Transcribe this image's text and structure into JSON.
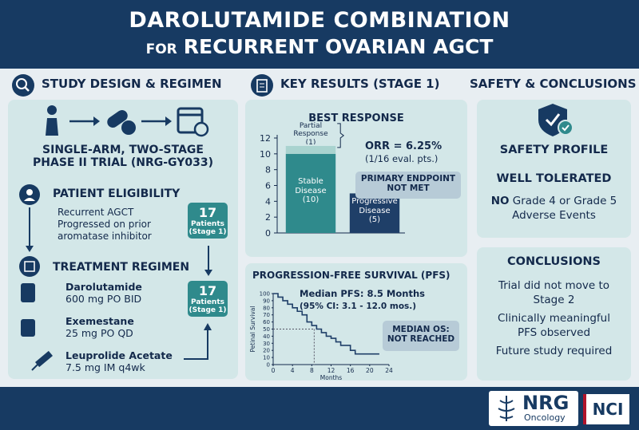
{
  "header": {
    "title": "DAROLUTAMIDE COMBINATION",
    "subtitle_prefix": "FOR",
    "subtitle": "RECURRENT OVARIAN AGCT"
  },
  "design": {
    "heading": "STUDY DESIGN & REGIMEN",
    "trial_line1": "SINGLE-ARM, TWO-STAGE",
    "trial_line2": "PHASE II TRIAL (NRG-GY033)",
    "eligibility_heading": "PATIENT ELIGIBILITY",
    "eligibility": [
      "Recurrent AGCT",
      "Progressed on prior aromatase inhibitor"
    ],
    "regimen_heading": "TREATMENT REGIMEN",
    "drugs": [
      {
        "name": "Darolutamide",
        "dose": "600 mg PO BID"
      },
      {
        "name": "Exemestane",
        "dose": "25 mg PO QD"
      },
      {
        "name": "Leuprolide Acetate",
        "dose": "7.5 mg IM q4wk"
      }
    ],
    "badges": [
      {
        "count": "17",
        "label": "Patients (Stage 1)"
      },
      {
        "count": "17",
        "label": "Patients (Stage 1)"
      }
    ]
  },
  "results": {
    "heading": "KEY RESULTS (STAGE 1)"
  },
  "chart_data": [
    {
      "type": "bar",
      "title": "BEST RESPONSE",
      "stacked": true,
      "categories": [
        null,
        null
      ],
      "series": [
        {
          "name": "Stable Disease",
          "color": "#2f8a8c",
          "values": [
            10,
            null
          ],
          "value_labels": [
            "(10)",
            null
          ]
        },
        {
          "name": "Partial Response",
          "color": "#a9d3cf",
          "values": [
            1,
            null
          ],
          "value_labels": [
            "(1)",
            null
          ]
        },
        {
          "name": "Progressive Disease",
          "color": "#1f3f68",
          "values": [
            null,
            5
          ],
          "value_labels": [
            null,
            "(5)"
          ]
        }
      ],
      "ylim": [
        0,
        12
      ],
      "yticks": [
        0,
        2,
        4,
        6,
        8,
        10,
        12
      ],
      "annotations": {
        "orr": "ORR = 6.25%",
        "orr_detail": "(1/16 eval. pts.)",
        "endpoint": "PRIMARY ENDPOINT NOT MET"
      }
    },
    {
      "type": "line",
      "step": true,
      "title": "PROGRESSION-FREE SURVIVAL (PFS)",
      "x_label": "Months",
      "y_label": "Petinal Survival",
      "x": [
        0,
        1,
        2,
        3,
        4,
        5,
        6,
        7,
        8,
        9,
        10,
        11,
        12,
        13,
        14,
        16,
        17,
        22
      ],
      "series": [
        {
          "name": "PFS",
          "color": "#1f3f68",
          "values": [
            100,
            95,
            90,
            85,
            80,
            75,
            70,
            60,
            55,
            50,
            45,
            40,
            37,
            32,
            27,
            20,
            15,
            15
          ]
        }
      ],
      "xlim": [
        0,
        24
      ],
      "xticks": [
        0,
        4,
        8,
        12,
        16,
        20,
        24
      ],
      "ylim": [
        0,
        100
      ],
      "yticks": [
        0,
        10,
        20,
        30,
        40,
        50,
        60,
        70,
        80,
        90,
        100
      ],
      "median_line": {
        "x": 8.5,
        "y": 50
      },
      "annotations": {
        "median": "Median PFS: 8.5 Months",
        "ci": "(95% CI: 3.1 - 12.0 mos.)",
        "os": "MEDIAN OS: NOT REACHED"
      }
    }
  ],
  "safety": {
    "heading": "SAFETY & CONCLUSIONS",
    "profile": "SAFETY PROFILE",
    "tolerated": "WELL TOLERATED",
    "no": "NO",
    "events": "Grade 4 or Grade 5 Adverse Events"
  },
  "conclusions": {
    "heading": "CONCLUSIONS",
    "items": [
      "Trial did not move to Stage 2",
      "Clinically meaningful PFS observed",
      "Future study required"
    ]
  },
  "footer": {
    "org": "NRG",
    "org_sub": "Oncology",
    "partner": "NCI"
  }
}
